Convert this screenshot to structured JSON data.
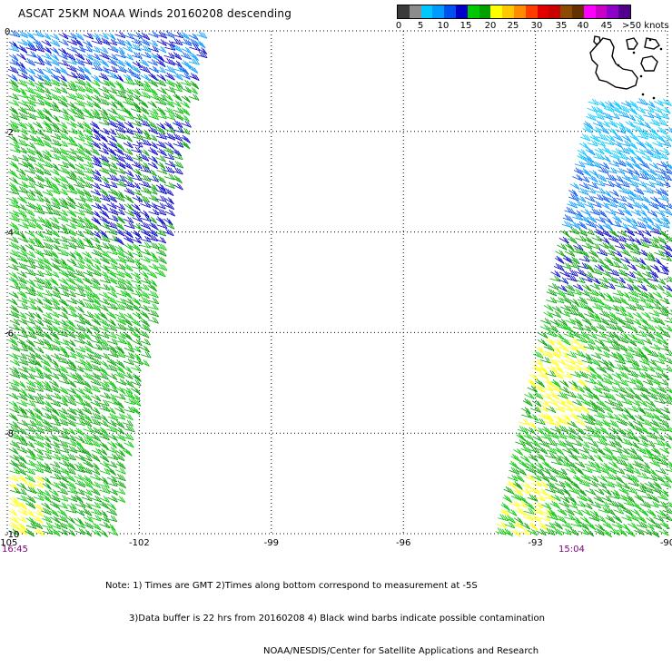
{
  "title": "ASCAT 25KM NOAA Winds 20160208 descending",
  "legend": {
    "colors": [
      "#3a3a3a",
      "#8c8c8c",
      "#00c8ff",
      "#009bff",
      "#0050f0",
      "#0000c8",
      "#00c800",
      "#00a000",
      "#ffff00",
      "#ffc800",
      "#ff8c00",
      "#ff3c00",
      "#e10000",
      "#c80000",
      "#8c4b00",
      "#643200",
      "#ff00ff",
      "#c800c8",
      "#8c00c8",
      "#50008c"
    ],
    "ticks": [
      "0",
      "5",
      "10",
      "15",
      "20",
      "25",
      "30",
      "35",
      "40",
      "45",
      ">50 knots"
    ]
  },
  "chart_data": {
    "type": "wind-barb map",
    "x_ticks": [
      "-105",
      "-102",
      "-99",
      "-96",
      "-93",
      "-90"
    ],
    "y_ticks": [
      "0",
      "-2",
      "-4",
      "-6",
      "-8",
      "-10"
    ],
    "xlim": [
      -105,
      -90
    ],
    "ylim": [
      -10,
      0
    ],
    "grid": true,
    "swaths": [
      {
        "time": "16:45",
        "lon_range_top": [
          -105,
          -100.7
        ],
        "lon_range_bottom": [
          -105,
          -102.6
        ],
        "wind_knots_range": [
          10,
          25
        ]
      },
      {
        "time": "15:04",
        "lon_range_top": [
          -92.3,
          -90
        ],
        "lon_range_bottom": [
          -94.2,
          -90
        ],
        "wind_knots_range": [
          5,
          25
        ]
      }
    ],
    "land": "Galapagos Islands (top-right)"
  },
  "time_labels": {
    "left": "16:45",
    "right": "15:04"
  },
  "notes": [
    "Note: 1) Times are GMT 2)Times along bottom correspond to measurement at -5S",
    "3)Data buffer is 22 hrs from 20160208 4) Black wind barbs indicate possible contamination",
    "NOAA/NESDIS/Center for Satellite Applications and Research"
  ]
}
